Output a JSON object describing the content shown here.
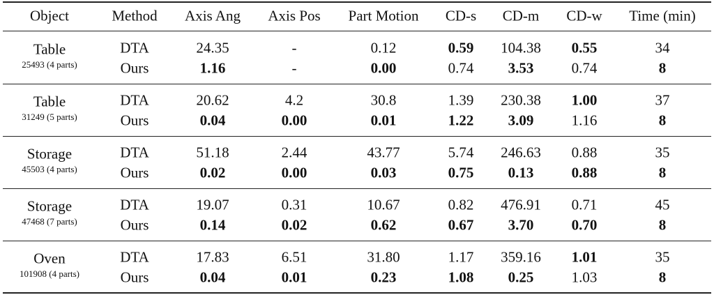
{
  "table": {
    "header": [
      "Object",
      "Method",
      "Axis Ang",
      "Axis Pos",
      "Part Motion",
      "CD-s",
      "CD-m",
      "CD-w",
      "Time (min)"
    ],
    "groups": [
      {
        "object": "Table",
        "id": "25493 (4 parts)",
        "rows": [
          {
            "method": "DTA",
            "values": [
              "24.35",
              "-",
              "0.12",
              "0.59",
              "104.38",
              "0.55",
              "34"
            ],
            "bold": [
              false,
              false,
              false,
              true,
              false,
              true,
              false
            ]
          },
          {
            "method": "Ours",
            "values": [
              "1.16",
              "-",
              "0.00",
              "0.74",
              "3.53",
              "0.74",
              "8"
            ],
            "bold": [
              true,
              false,
              true,
              false,
              true,
              false,
              true
            ]
          }
        ]
      },
      {
        "object": "Table",
        "id": "31249 (5 parts)",
        "rows": [
          {
            "method": "DTA",
            "values": [
              "20.62",
              "4.2",
              "30.8",
              "1.39",
              "230.38",
              "1.00",
              "37"
            ],
            "bold": [
              false,
              false,
              false,
              false,
              false,
              true,
              false
            ]
          },
          {
            "method": "Ours",
            "values": [
              "0.04",
              "0.00",
              "0.01",
              "1.22",
              "3.09",
              "1.16",
              "8"
            ],
            "bold": [
              true,
              true,
              true,
              true,
              true,
              false,
              true
            ]
          }
        ]
      },
      {
        "object": "Storage",
        "id": "45503 (4 parts)",
        "rows": [
          {
            "method": "DTA",
            "values": [
              "51.18",
              "2.44",
              "43.77",
              "5.74",
              "246.63",
              "0.88",
              "35"
            ],
            "bold": [
              false,
              false,
              false,
              false,
              false,
              false,
              false
            ]
          },
          {
            "method": "Ours",
            "values": [
              "0.02",
              "0.00",
              "0.03",
              "0.75",
              "0.13",
              "0.88",
              "8"
            ],
            "bold": [
              true,
              true,
              true,
              true,
              true,
              true,
              true
            ]
          }
        ]
      },
      {
        "object": "Storage",
        "id": "47468 (7 parts)",
        "rows": [
          {
            "method": "DTA",
            "values": [
              "19.07",
              "0.31",
              "10.67",
              "0.82",
              "476.91",
              "0.71",
              "45"
            ],
            "bold": [
              false,
              false,
              false,
              false,
              false,
              false,
              false
            ]
          },
          {
            "method": "Ours",
            "values": [
              "0.14",
              "0.02",
              "0.62",
              "0.67",
              "3.70",
              "0.70",
              "8"
            ],
            "bold": [
              true,
              true,
              true,
              true,
              true,
              true,
              true
            ]
          }
        ]
      },
      {
        "object": "Oven",
        "id": "101908 (4 parts)",
        "rows": [
          {
            "method": "DTA",
            "values": [
              "17.83",
              "6.51",
              "31.80",
              "1.17",
              "359.16",
              "1.01",
              "35"
            ],
            "bold": [
              false,
              false,
              false,
              false,
              false,
              true,
              false
            ]
          },
          {
            "method": "Ours",
            "values": [
              "0.04",
              "0.01",
              "0.23",
              "1.08",
              "0.25",
              "1.03",
              "8"
            ],
            "bold": [
              true,
              true,
              true,
              true,
              true,
              false,
              true
            ]
          }
        ]
      }
    ]
  }
}
